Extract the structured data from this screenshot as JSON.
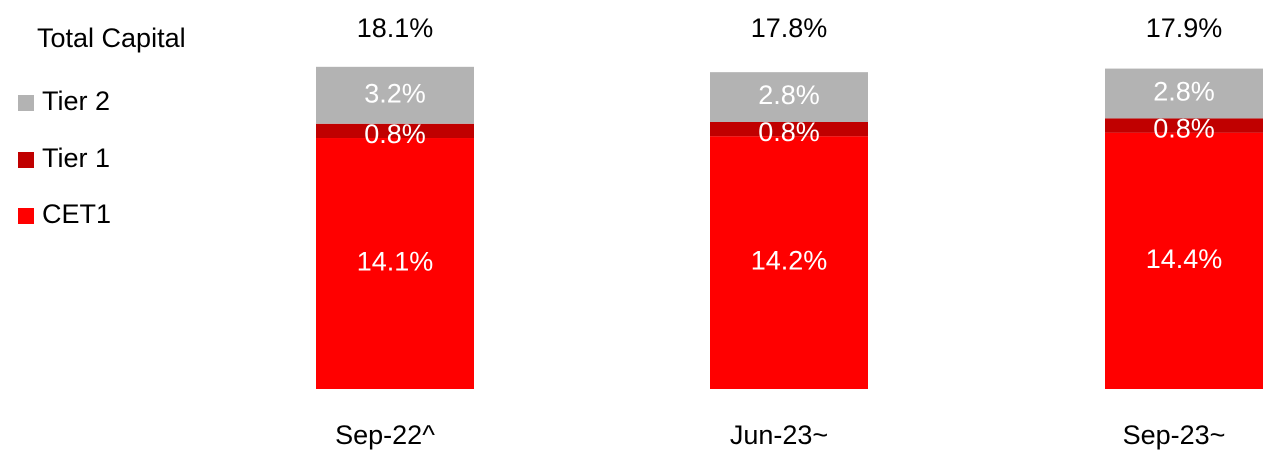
{
  "chart_data": {
    "type": "stacked_bar",
    "legend_title": "Total Capital",
    "categories": [
      "Sep-22^",
      "Jun-23~",
      "Sep-23~"
    ],
    "series": [
      {
        "name": "CET1",
        "color": "#ff0000",
        "values": [
          14.1,
          14.2,
          14.4
        ],
        "value_labels": [
          "14.1%",
          "14.2%",
          "14.4%"
        ]
      },
      {
        "name": "Tier 1",
        "color": "#c00000",
        "values": [
          0.8,
          0.8,
          0.8
        ],
        "value_labels": [
          "0.8%",
          "0.8%",
          "0.8%"
        ]
      },
      {
        "name": "Tier 2",
        "color": "#b3b3b3",
        "values": [
          3.2,
          2.8,
          2.8
        ],
        "value_labels": [
          "3.2%",
          "2.8%",
          "2.8%"
        ]
      }
    ],
    "totals": [
      18.1,
      17.8,
      17.9
    ],
    "total_labels": [
      "18.1%",
      "17.8%",
      "17.9%"
    ]
  }
}
